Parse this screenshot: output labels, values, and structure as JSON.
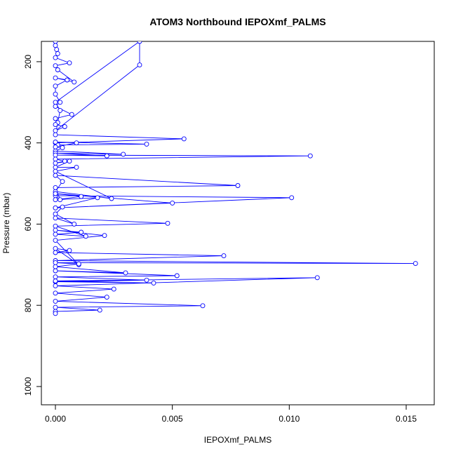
{
  "chart_data": {
    "type": "line",
    "title": "ATOM3 Northbound IEPOXmf_PALMS",
    "xlabel": "IEPOXmf_PALMS",
    "ylabel": "Pressure (mbar)",
    "xlim": [
      -0.0006,
      0.0162
    ],
    "ylim": [
      1045,
      150
    ],
    "y_reversed": true,
    "x_ticks": [
      0.0,
      0.005,
      0.01,
      0.015
    ],
    "x_tick_labels": [
      "0.000",
      "0.005",
      "0.010",
      "0.015"
    ],
    "y_ticks": [
      200,
      400,
      600,
      800,
      1000
    ],
    "y_tick_labels": [
      "200",
      "400",
      "600",
      "800",
      "1000"
    ],
    "grid": false,
    "color": "#0000ff",
    "marker": "open-circle",
    "series": [
      {
        "x": [
          0.0,
          0.0,
          5e-05,
          0.0001,
          0.0,
          0.0006,
          0.0,
          0.0001,
          0.0008,
          0.0,
          0.0005,
          0.0,
          0.0,
          0.0002,
          0.0,
          0.0007,
          0.0,
          0.0001,
          0.0,
          0.0004,
          0.0,
          0.0036,
          0.0036,
          0.0,
          0.0002,
          0.0,
          0.0055,
          0.0,
          0.0001,
          0.0039,
          0.0,
          0.0009,
          0.0,
          0.0003,
          0.0,
          0.0029,
          0.0,
          0.0022,
          0.0,
          0.0109,
          0.0,
          0.0004,
          0.0,
          0.0006,
          0.0,
          0.0009,
          0.0,
          0.0024,
          0.0,
          0.0003,
          0.0,
          0.0078,
          0.0,
          0.0002,
          0.0,
          0.0101,
          0.0,
          0.0018,
          0.0,
          0.0011,
          0.0,
          0.005,
          0.0,
          0.0003,
          0.0,
          0.0008,
          0.0,
          0.0048,
          0.0,
          0.0013,
          0.0,
          0.0011,
          0.0,
          0.0021,
          0.0,
          0.001,
          0.0,
          0.0006,
          0.0,
          0.0072,
          0.0,
          0.0154,
          0.0,
          0.001,
          0.0,
          0.003,
          0.0,
          0.0052,
          0.0,
          0.0039,
          0.0,
          0.0042,
          0.0,
          0.0112,
          0.0,
          0.0025,
          0.0,
          0.0022,
          0.0,
          0.0063,
          0.0,
          0.0019,
          0.0,
          0.0
        ],
        "y": [
          150,
          160,
          170,
          180,
          190,
          203,
          210,
          220,
          250,
          240,
          245,
          260,
          280,
          300,
          310,
          330,
          340,
          350,
          355,
          360,
          370,
          208,
          150,
          300,
          320,
          380,
          390,
          400,
          405,
          403,
          398,
          400,
          410,
          412,
          420,
          428,
          425,
          432,
          430,
          432,
          440,
          445,
          450,
          445,
          460,
          460,
          470,
          537,
          520,
          495,
          480,
          505,
          510,
          540,
          530,
          535,
          560,
          535,
          540,
          532,
          525,
          548,
          560,
          558,
          575,
          600,
          585,
          598,
          605,
          630,
          625,
          620,
          615,
          628,
          640,
          700,
          660,
          665,
          670,
          678,
          690,
          697,
          695,
          698,
          705,
          720,
          715,
          727,
          730,
          738,
          742,
          745,
          740,
          732,
          752,
          760,
          770,
          780,
          790,
          801,
          805,
          812,
          815,
          820
        ]
      }
    ]
  }
}
